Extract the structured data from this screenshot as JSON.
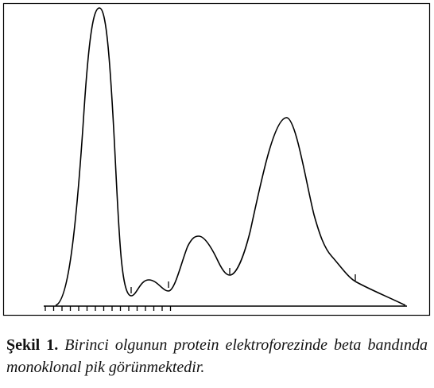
{
  "figure": {
    "caption_label": "Şekil 1.",
    "caption_text": "Birinci olgunun protein elektroforezinde beta bandında monoklonal pik görünmektedir."
  }
}
